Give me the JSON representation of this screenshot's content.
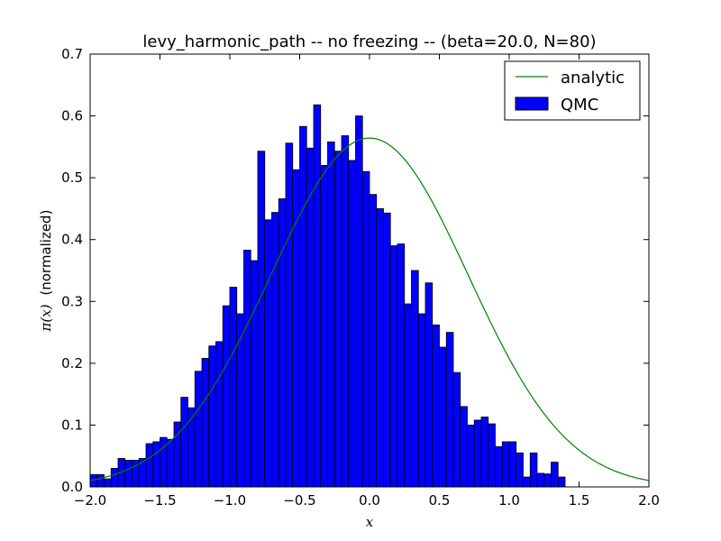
{
  "chart_data": {
    "type": "bar",
    "title": "levy_harmonic_path -- no freezing -- (beta=20.0, N=80)",
    "xlabel": "x",
    "ylabel_math": "π(x)",
    "ylabel_text": "(normalized)",
    "xlim": [
      -2.0,
      2.0
    ],
    "ylim": [
      0.0,
      0.7
    ],
    "xticks": [
      -2.0,
      -1.5,
      -1.0,
      -0.5,
      0.0,
      0.5,
      1.0,
      1.5,
      2.0
    ],
    "xtick_labels": [
      "−2.0",
      "−1.5",
      "−1.0",
      "−0.5",
      "0.0",
      "0.5",
      "1.0",
      "1.5",
      "2.0"
    ],
    "yticks": [
      0.0,
      0.1,
      0.2,
      0.3,
      0.4,
      0.5,
      0.6,
      0.7
    ],
    "ytick_labels": [
      "0.0",
      "0.1",
      "0.2",
      "0.3",
      "0.4",
      "0.5",
      "0.6",
      "0.7"
    ],
    "grid": false,
    "legend_position": "top-right",
    "bin_edges_start": -2.0,
    "bin_width": 0.05,
    "hist_values": [
      0.02,
      0.02,
      0.013,
      0.03,
      0.046,
      0.043,
      0.043,
      0.046,
      0.07,
      0.073,
      0.08,
      0.077,
      0.105,
      0.145,
      0.128,
      0.187,
      0.208,
      0.228,
      0.235,
      0.293,
      0.323,
      0.28,
      0.383,
      0.366,
      0.543,
      0.432,
      0.444,
      0.466,
      0.556,
      0.513,
      0.583,
      0.548,
      0.618,
      0.52,
      0.558,
      0.543,
      0.568,
      0.528,
      0.6,
      0.51,
      0.473,
      0.45,
      0.443,
      0.39,
      0.393,
      0.296,
      0.35,
      0.28,
      0.33,
      0.262,
      0.226,
      0.25,
      0.185,
      0.13,
      0.1,
      0.108,
      0.113,
      0.102,
      0.065,
      0.073,
      0.073,
      0.055,
      0.016,
      0.055,
      0.022,
      0.021,
      0.04,
      0.016
    ],
    "hist_color": "#0000ff",
    "analytic": {
      "sigma": 0.7071,
      "color": "#008000"
    },
    "legend": [
      {
        "label": "analytic",
        "kind": "line",
        "color": "#008000"
      },
      {
        "label": "QMC",
        "kind": "patch",
        "color": "#0000ff"
      }
    ]
  }
}
